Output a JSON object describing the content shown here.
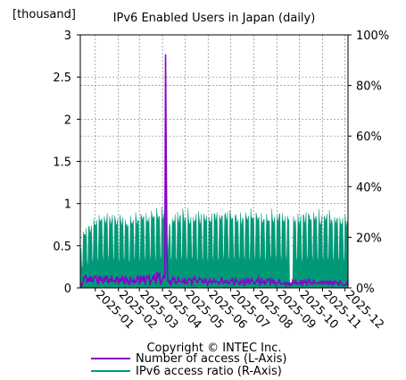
{
  "chart_data": {
    "type": "area",
    "title": "IPv6 Enabled Users in Japan (daily)",
    "left_unit": "[thousand]",
    "copyright": "Copyright © INTEC Inc.",
    "left_axis": {
      "range": [
        0,
        3
      ],
      "ticks": [
        {
          "value": 0,
          "label": "0"
        },
        {
          "value": 0.5,
          "label": "0.5"
        },
        {
          "value": 1,
          "label": "1"
        },
        {
          "value": 1.5,
          "label": "1.5"
        },
        {
          "value": 2,
          "label": "2"
        },
        {
          "value": 2.5,
          "label": "2.5"
        },
        {
          "value": 3,
          "label": "3"
        }
      ]
    },
    "right_axis": {
      "range": [
        0,
        1
      ],
      "ticks": [
        {
          "value": 0,
          "label": "0%"
        },
        {
          "value": 0.2,
          "label": "20%"
        },
        {
          "value": 0.4,
          "label": "40%"
        },
        {
          "value": 0.6,
          "label": "60%"
        },
        {
          "value": 0.8,
          "label": "80%"
        },
        {
          "value": 1,
          "label": "100%"
        }
      ]
    },
    "x_axis": {
      "start": "2024-12-12",
      "end": "2025-12-05",
      "ticks": [
        {
          "date": "2025-01-01",
          "label": "2025-01"
        },
        {
          "date": "2025-02-01",
          "label": "2025-02"
        },
        {
          "date": "2025-03-01",
          "label": "2025-03"
        },
        {
          "date": "2025-04-01",
          "label": "2025-04"
        },
        {
          "date": "2025-05-01",
          "label": "2025-05"
        },
        {
          "date": "2025-06-01",
          "label": "2025-06"
        },
        {
          "date": "2025-07-01",
          "label": "2025-07"
        },
        {
          "date": "2025-08-01",
          "label": "2025-08"
        },
        {
          "date": "2025-09-01",
          "label": "2025-09"
        },
        {
          "date": "2025-10-01",
          "label": "2025-10"
        },
        {
          "date": "2025-11-01",
          "label": "2025-11"
        },
        {
          "date": "2025-12-01",
          "label": "2025-12"
        }
      ]
    },
    "grid": true,
    "legend_position": "bottom",
    "series": [
      {
        "name": "Number of access (L-Axis)",
        "axis": "left",
        "type": "line",
        "color": "#8800cc",
        "points": [
          [
            "2024-12-12",
            0.05
          ],
          [
            "2024-12-20",
            0.12
          ],
          [
            "2025-01-01",
            0.1
          ],
          [
            "2025-01-15",
            0.1
          ],
          [
            "2025-02-01",
            0.11
          ],
          [
            "2025-02-15",
            0.1
          ],
          [
            "2025-03-01",
            0.11
          ],
          [
            "2025-03-15",
            0.12
          ],
          [
            "2025-03-25",
            0.14
          ],
          [
            "2025-04-04",
            0.12
          ],
          [
            "2025-04-05",
            2.77
          ],
          [
            "2025-04-06",
            1.42
          ],
          [
            "2025-04-07",
            0.35
          ],
          [
            "2025-04-08",
            0.06
          ],
          [
            "2025-04-15",
            0.1
          ],
          [
            "2025-05-01",
            0.09
          ],
          [
            "2025-05-15",
            0.1
          ],
          [
            "2025-06-01",
            0.09
          ],
          [
            "2025-07-01",
            0.08
          ],
          [
            "2025-08-01",
            0.09
          ],
          [
            "2025-09-01",
            0.08
          ],
          [
            "2025-09-18",
            0.05
          ],
          [
            "2025-09-24",
            0.08
          ],
          [
            "2025-10-01",
            0.07
          ],
          [
            "2025-11-01",
            0.07
          ],
          [
            "2025-12-05",
            0.06
          ]
        ]
      },
      {
        "name": "IPv6 access ratio (R-Axis)",
        "axis": "right",
        "type": "area",
        "color": "#009977",
        "points": [
          [
            "2024-12-12",
            0.1
          ],
          [
            "2024-12-14",
            0.22
          ],
          [
            "2024-12-20",
            0.25
          ],
          [
            "2025-01-01",
            0.28
          ],
          [
            "2025-01-15",
            0.3
          ],
          [
            "2025-02-01",
            0.3
          ],
          [
            "2025-02-15",
            0.28
          ],
          [
            "2025-03-01",
            0.3
          ],
          [
            "2025-03-15",
            0.3
          ],
          [
            "2025-04-01",
            0.31
          ],
          [
            "2025-04-04",
            0.32
          ],
          [
            "2025-04-05",
            0.48
          ],
          [
            "2025-04-06",
            0.45
          ],
          [
            "2025-04-07",
            0.1
          ],
          [
            "2025-04-10",
            0.27
          ],
          [
            "2025-04-15",
            0.3
          ],
          [
            "2025-05-01",
            0.31
          ],
          [
            "2025-05-15",
            0.3
          ],
          [
            "2025-06-01",
            0.3
          ],
          [
            "2025-06-15",
            0.31
          ],
          [
            "2025-07-01",
            0.31
          ],
          [
            "2025-07-15",
            0.3
          ],
          [
            "2025-08-01",
            0.31
          ],
          [
            "2025-08-15",
            0.3
          ],
          [
            "2025-09-01",
            0.31
          ],
          [
            "2025-09-17",
            0.3
          ],
          [
            "2025-09-18",
            0.02
          ],
          [
            "2025-09-22",
            0.02
          ],
          [
            "2025-09-23",
            0.3
          ],
          [
            "2025-10-01",
            0.3
          ],
          [
            "2025-10-15",
            0.31
          ],
          [
            "2025-11-01",
            0.3
          ],
          [
            "2025-11-15",
            0.3
          ],
          [
            "2025-12-05",
            0.29
          ]
        ]
      }
    ]
  }
}
